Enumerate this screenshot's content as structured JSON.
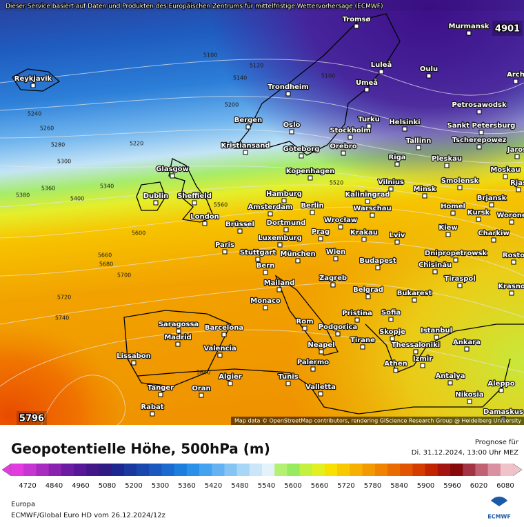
{
  "header": {
    "notice": "Dieser Service basiert auf Daten und Produkten des Europäischen Zentrums für mittelfristige Wettervorhersage (ECMWF)"
  },
  "map": {
    "min_label": "4901",
    "max_label": "5796",
    "attribution": "Map data © OpenStreetMap contributors, rendering GIScience Research Group @ Heidelberg University",
    "cities": [
      "Tromsø",
      "Murmansk",
      "Luleå",
      "Oulu",
      "Arch",
      "Reykjavik",
      "Trondheim",
      "Umeå",
      "Petrosawodsk",
      "Bergen",
      "Oslo",
      "Turku",
      "Helsinki",
      "Sankt Petersburg",
      "Stockholm",
      "Orebro",
      "Tallinn",
      "Tscherepowez",
      "Kristiansand",
      "Göteborg",
      "Jaros",
      "Riga",
      "Pleskau",
      "Glasgow",
      "Kopenhagen",
      "Moskau",
      "Vilnius",
      "Smolensk",
      "Minsk",
      "Rjas",
      "Hamburg",
      "Kaliningrad",
      "Dublin",
      "Sheffield",
      "Brjansk",
      "Berlin",
      "Amsterdam",
      "Warschau",
      "Homel",
      "Kursk",
      "Worone",
      "London",
      "Brüssel",
      "Dortmund",
      "Wrocław",
      "Kiew",
      "Krakau",
      "Prag",
      "Charkiw",
      "Lviv",
      "Luxemburg",
      "Paris",
      "Stuttgart",
      "München",
      "Wien",
      "Dnipropetrowsk",
      "Budapest",
      "Chisinău",
      "Rosto",
      "Bern",
      "Tiraspol",
      "Zagreb",
      "Mailand",
      "Krasno",
      "Belgrad",
      "Bukarest",
      "Monaco",
      "Pristina",
      "Sofia",
      "Rom",
      "Podgorica",
      "Saragossa",
      "Barcelona",
      "Istanbul",
      "Skopje",
      "Madrid",
      "Tirane",
      "Ankara",
      "Thessaloniki",
      "Neapel",
      "Valencia",
      "Lissabon",
      "Izmir",
      "Palermo",
      "Athen",
      "Algier",
      "Tunis",
      "Antalya",
      "Aleppo",
      "Tanger",
      "Oran",
      "Valletta",
      "Nikosia",
      "Rabat",
      "Damaskus"
    ],
    "contour_labels": [
      5100,
      5120,
      5140,
      5100,
      5200,
      5240,
      5260,
      5280,
      5220,
      5300,
      5340,
      5360,
      5380,
      5400,
      5520,
      5560,
      5600,
      5660,
      5680,
      5700,
      5720,
      5740,
      5640
    ]
  },
  "panel": {
    "title": "Geopotentielle Höhe, 500hPa (m)",
    "forecast_label": "Prognose für",
    "forecast_time": "Di. 31.12.2024, 13:00 Uhr MEZ"
  },
  "colorbar": {
    "labels": [
      4720,
      4840,
      4960,
      5080,
      5200,
      5300,
      5360,
      5420,
      5480,
      5540,
      5600,
      5660,
      5720,
      5780,
      5840,
      5900,
      5960,
      6020,
      6080
    ],
    "colors": [
      "#e23ce0",
      "#c636d0",
      "#a82cc0",
      "#8a22b0",
      "#6c1ca2",
      "#561896",
      "#421888",
      "#301a84",
      "#1e2690",
      "#1a389e",
      "#1848ae",
      "#1a58c0",
      "#1a6ad0",
      "#1e7ede",
      "#2a90e8",
      "#44a2f0",
      "#64b2f2",
      "#86c4f4",
      "#a8d6f6",
      "#cae6f8",
      "#e4f2fa",
      "#b4f072",
      "#98ea5e",
      "#c4f040",
      "#e2f020",
      "#f8e000",
      "#f8c800",
      "#f6b000",
      "#f29a00",
      "#f08400",
      "#ea6c00",
      "#e25400",
      "#d43c00",
      "#c22400",
      "#a41410",
      "#860a0a",
      "#a23444",
      "#c06272",
      "#d890a2",
      "#f0c2ca"
    ]
  },
  "footer": {
    "region": "Europa",
    "model": "ECMWF/Global Euro HD vom  26.12.2024/12z",
    "logo": "ECMWF"
  }
}
